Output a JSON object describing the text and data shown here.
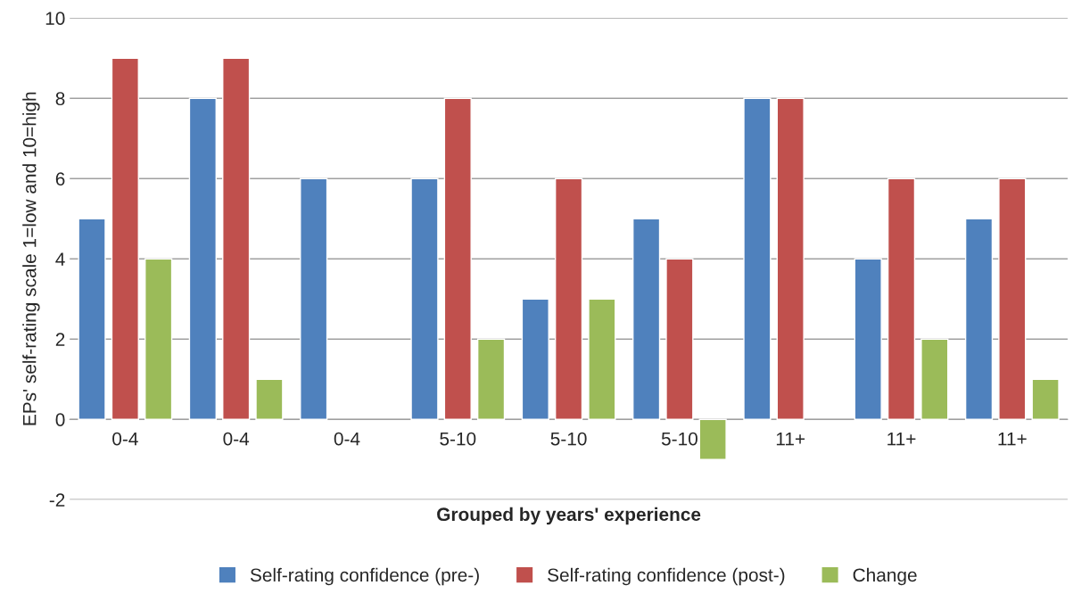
{
  "chart_data": {
    "type": "bar",
    "categories": [
      "0-4",
      "0-4",
      "0-4",
      "5-10",
      "5-10",
      "5-10",
      "11+",
      "11+",
      "11+"
    ],
    "series": [
      {
        "name": "Self-rating confidence (pre-)",
        "color": "#4f81bd",
        "values": [
          5,
          8,
          6,
          6,
          3,
          5,
          8,
          4,
          5
        ]
      },
      {
        "name": "Self-rating confidence (post-)",
        "color": "#c0504d",
        "values": [
          9,
          9,
          null,
          8,
          6,
          4,
          8,
          6,
          6
        ]
      },
      {
        "name": "Change",
        "color": "#9bbb59",
        "values": [
          4,
          1,
          null,
          2,
          3,
          -1,
          null,
          2,
          1
        ]
      }
    ],
    "xlabel": "Grouped by years' experience",
    "ylabel": "EPs' self-rating scale 1=low and 10=high",
    "ylim": [
      -2,
      10
    ],
    "yticks": [
      -2,
      0,
      2,
      4,
      6,
      8,
      10
    ],
    "grid": "y",
    "legend": "bottom"
  }
}
